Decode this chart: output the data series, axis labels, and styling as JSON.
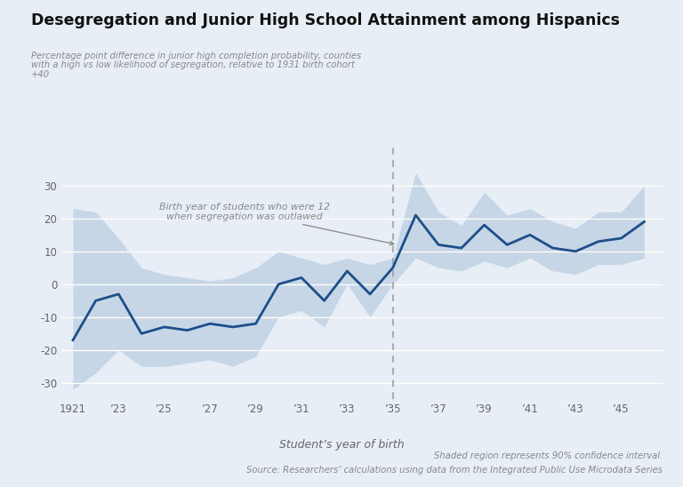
{
  "title": "Desegregation and Junior High School Attainment among Hispanics",
  "ylabel_line1": "Percentage point difference in junior high completion probability, counties",
  "ylabel_line2": "with a high vs low likelihood of segregation, relative to 1931 birth cohort",
  "ylabel_line3": "+40",
  "xlabel": "Student’s year of birth",
  "background_color": "#e8eef5",
  "line_color": "#1c4f8a",
  "ci_color": "#a8bfd8",
  "dashed_line_x": 1935,
  "annotation_text": "Birth year of students who were 12\nwhen segregation was outlawed",
  "footnote1": "Shaded region represents 90% confidence interval.",
  "footnote2": "Source: Researchers’ calculations using data from the Integrated Public Use Microdata Series",
  "years": [
    1921,
    1922,
    1923,
    1924,
    1925,
    1926,
    1927,
    1928,
    1929,
    1930,
    1931,
    1932,
    1933,
    1934,
    1935,
    1936,
    1937,
    1938,
    1939,
    1940,
    1941,
    1942,
    1943,
    1944,
    1945,
    1946
  ],
  "values": [
    -17,
    -5,
    -3,
    -15,
    -13,
    -14,
    -12,
    -13,
    -12,
    0,
    2,
    -5,
    4,
    -3,
    5,
    21,
    12,
    11,
    18,
    12,
    15,
    11,
    10,
    13,
    14,
    19
  ],
  "ci_upper": [
    23,
    22,
    14,
    5,
    3,
    2,
    1,
    2,
    5,
    10,
    8,
    6,
    8,
    6,
    8,
    34,
    22,
    18,
    28,
    21,
    23,
    19,
    17,
    22,
    22,
    30
  ],
  "ci_lower": [
    -32,
    -27,
    -20,
    -25,
    -25,
    -24,
    -23,
    -25,
    -22,
    -10,
    -8,
    -13,
    0,
    -10,
    0,
    8,
    5,
    4,
    7,
    5,
    8,
    4,
    3,
    6,
    6,
    8
  ],
  "ylim": [
    -35,
    42
  ],
  "yticks": [
    -30,
    -20,
    -10,
    0,
    10,
    20,
    30
  ],
  "xtick_years": [
    1921,
    1923,
    1925,
    1927,
    1929,
    1931,
    1933,
    1935,
    1937,
    1939,
    1941,
    1943,
    1945
  ],
  "xtick_labels": [
    "1921",
    "’23",
    "’25",
    "’27",
    "’29",
    "’31",
    "’33",
    "’35",
    "’37",
    "’39",
    "’41",
    "’43",
    "’45"
  ]
}
